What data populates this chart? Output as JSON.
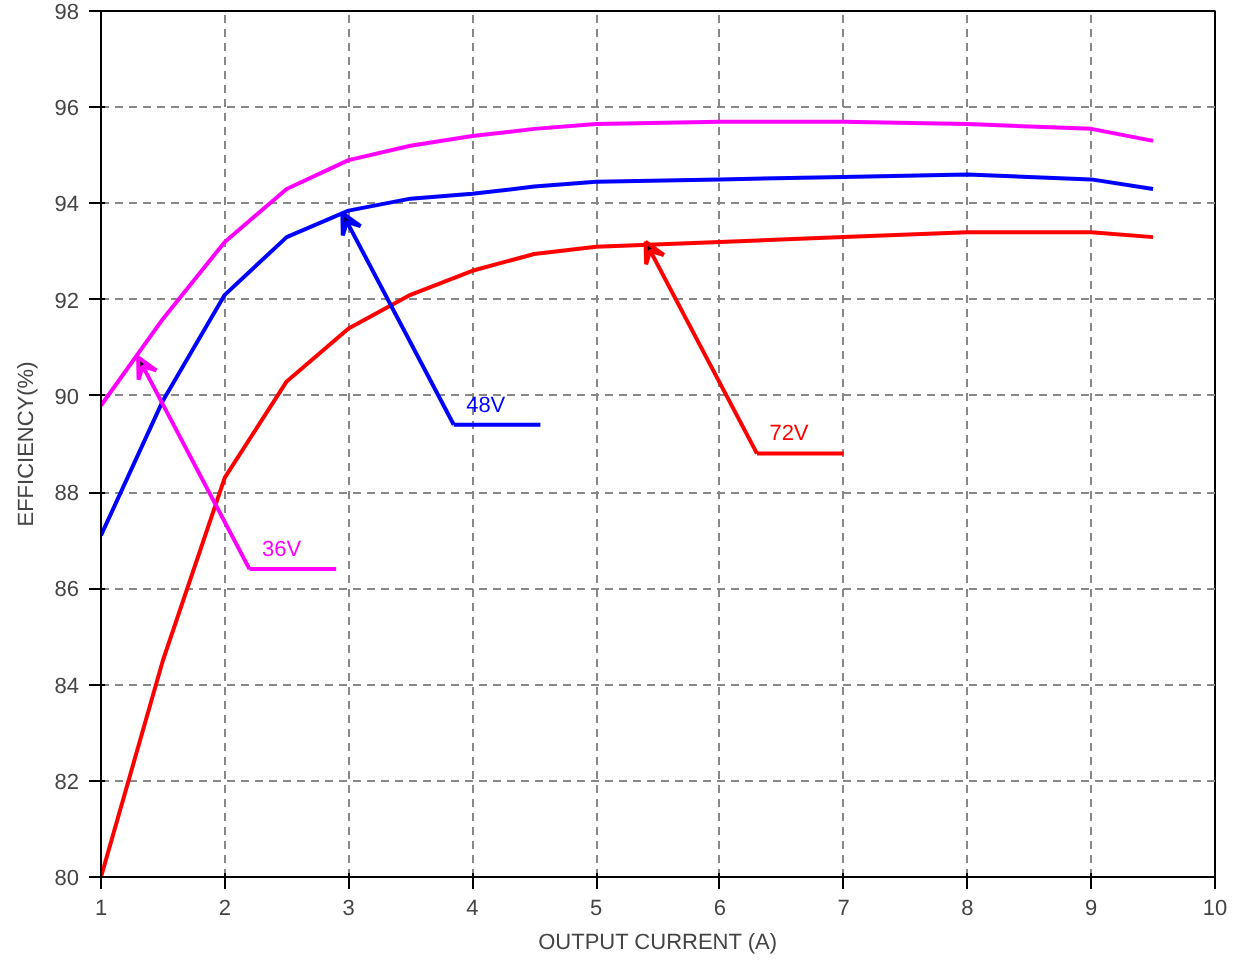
{
  "chart_data": {
    "type": "line",
    "xlabel": "OUTPUT CURRENT (A)",
    "ylabel": "EFFICIENCY(%)",
    "x": [
      1,
      1.5,
      2,
      2.5,
      3,
      3.5,
      4,
      4.5,
      5,
      6,
      7,
      8,
      9,
      9.5
    ],
    "series": [
      {
        "color": "#ff00ff",
        "values": [
          89.8,
          91.6,
          93.2,
          94.3,
          94.9,
          95.2,
          95.4,
          95.55,
          95.65,
          95.7,
          95.7,
          95.65,
          95.55,
          95.3
        ]
      },
      {
        "color": "#0000ff",
        "values": [
          87.1,
          89.9,
          92.1,
          93.3,
          93.85,
          94.1,
          94.2,
          94.35,
          94.45,
          94.5,
          94.55,
          94.6,
          94.5,
          94.3
        ]
      },
      {
        "color": "#ff0000",
        "values": [
          80.0,
          84.5,
          88.3,
          90.3,
          91.4,
          92.1,
          92.6,
          92.95,
          93.1,
          93.2,
          93.3,
          93.4,
          93.4,
          93.3
        ]
      }
    ],
    "annotations": [
      {
        "text": "36V",
        "x": 1.3,
        "y": 90.8
      },
      {
        "text": "48V",
        "x": 2.95,
        "y": 93.8
      },
      {
        "text": "72V",
        "x": 5.4,
        "y": 93.2
      }
    ],
    "xlim": [
      1,
      10
    ],
    "ylim": [
      80,
      98
    ],
    "xticks": [
      1,
      2,
      3,
      4,
      5,
      6,
      7,
      8,
      9,
      10
    ],
    "yticks": [
      80,
      82,
      84,
      86,
      88,
      90,
      92,
      94,
      96,
      98
    ],
    "grid": true,
    "line_style": "solid"
  }
}
